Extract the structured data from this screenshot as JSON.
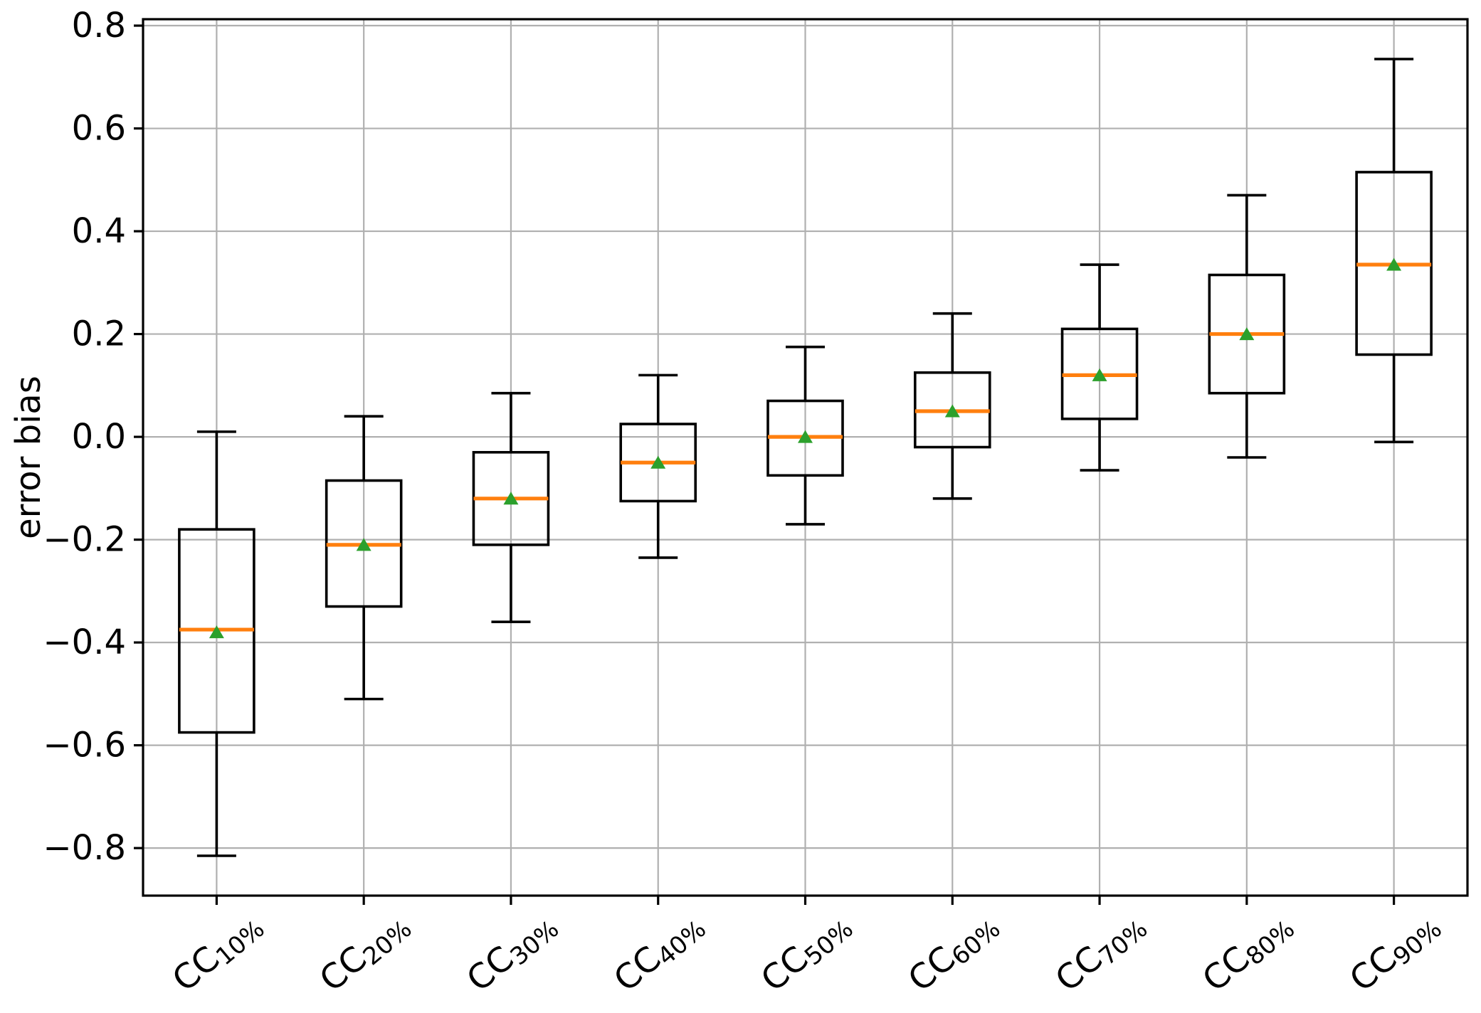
{
  "chart_data": {
    "type": "boxplot",
    "title": "",
    "xlabel": "",
    "ylabel": "error bias",
    "ylim": [
      -0.8925,
      0.8125
    ],
    "grid": true,
    "legend": "none",
    "colors": {
      "box_edge": "#000000",
      "whisker": "#000000",
      "median": "#ff7f0e",
      "mean_marker": "#2ca02c",
      "grid": "#b0b0b0",
      "spine": "#000000",
      "background": "#ffffff"
    },
    "yticks": [
      {
        "value": 0.8,
        "label": "0.8"
      },
      {
        "value": 0.6,
        "label": "0.6"
      },
      {
        "value": 0.4,
        "label": "0.4"
      },
      {
        "value": 0.2,
        "label": "0.2"
      },
      {
        "value": 0.0,
        "label": "0.0"
      },
      {
        "value": -0.2,
        "label": "−0.2"
      },
      {
        "value": -0.4,
        "label": "−0.4"
      },
      {
        "value": -0.6,
        "label": "−0.6"
      },
      {
        "value": -0.8,
        "label": "−0.8"
      }
    ],
    "categories": [
      {
        "base": "CC",
        "subscript": "10%"
      },
      {
        "base": "CC",
        "subscript": "20%"
      },
      {
        "base": "CC",
        "subscript": "30%"
      },
      {
        "base": "CC",
        "subscript": "40%"
      },
      {
        "base": "CC",
        "subscript": "50%"
      },
      {
        "base": "CC",
        "subscript": "60%"
      },
      {
        "base": "CC",
        "subscript": "70%"
      },
      {
        "base": "CC",
        "subscript": "80%"
      },
      {
        "base": "CC",
        "subscript": "90%"
      }
    ],
    "series": [
      {
        "label": "CC 10%",
        "whisker_low": -0.815,
        "q1": -0.575,
        "median": -0.375,
        "mean": -0.38,
        "q3": -0.18,
        "whisker_high": 0.01
      },
      {
        "label": "CC 20%",
        "whisker_low": -0.51,
        "q1": -0.33,
        "median": -0.21,
        "mean": -0.21,
        "q3": -0.085,
        "whisker_high": 0.04
      },
      {
        "label": "CC 30%",
        "whisker_low": -0.36,
        "q1": -0.21,
        "median": -0.12,
        "mean": -0.12,
        "q3": -0.03,
        "whisker_high": 0.085
      },
      {
        "label": "CC 40%",
        "whisker_low": -0.235,
        "q1": -0.125,
        "median": -0.05,
        "mean": -0.05,
        "q3": 0.025,
        "whisker_high": 0.12
      },
      {
        "label": "CC 50%",
        "whisker_low": -0.17,
        "q1": -0.075,
        "median": 0.0,
        "mean": 0.0,
        "q3": 0.07,
        "whisker_high": 0.175
      },
      {
        "label": "CC 60%",
        "whisker_low": -0.12,
        "q1": -0.02,
        "median": 0.05,
        "mean": 0.05,
        "q3": 0.125,
        "whisker_high": 0.24
      },
      {
        "label": "CC 70%",
        "whisker_low": -0.065,
        "q1": 0.035,
        "median": 0.12,
        "mean": 0.12,
        "q3": 0.21,
        "whisker_high": 0.335
      },
      {
        "label": "CC 80%",
        "whisker_low": -0.04,
        "q1": 0.085,
        "median": 0.2,
        "mean": 0.2,
        "q3": 0.315,
        "whisker_high": 0.47
      },
      {
        "label": "CC 90%",
        "whisker_low": -0.01,
        "q1": 0.16,
        "median": 0.335,
        "mean": 0.335,
        "q3": 0.515,
        "whisker_high": 0.735
      }
    ]
  }
}
